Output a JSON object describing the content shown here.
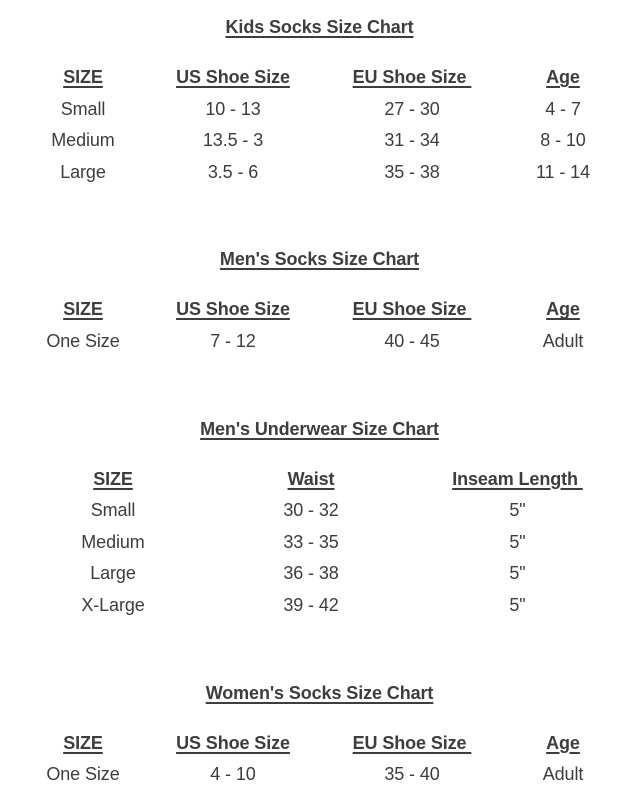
{
  "page": {
    "background": "#ffffff",
    "text_color": "#3d3d3d"
  },
  "charts": [
    {
      "title": "Kids Socks Size Chart",
      "layout": "four-col",
      "headers": [
        "SIZE",
        "US Shoe Size",
        "EU Shoe Size ",
        "Age"
      ],
      "rows": [
        [
          "Small",
          "10 - 13",
          "27 - 30",
          "4 - 7"
        ],
        [
          "Medium",
          "13.5 - 3",
          "31 - 34",
          "8 - 10"
        ],
        [
          "Large",
          "3.5 - 6",
          "35 - 38",
          "11 - 14"
        ]
      ]
    },
    {
      "title": "Men's Socks Size Chart",
      "layout": "four-col",
      "headers": [
        "SIZE",
        "US Shoe Size",
        "EU Shoe Size ",
        "Age"
      ],
      "rows": [
        [
          "One Size",
          "7 - 12",
          "40 - 45",
          "Adult"
        ]
      ]
    },
    {
      "title": "Men's Underwear Size Chart",
      "layout": "three-col",
      "headers": [
        "SIZE",
        "Waist",
        "Inseam Length "
      ],
      "rows": [
        [
          "Small",
          "30 - 32",
          "5\""
        ],
        [
          "Medium",
          "33 - 35",
          "5\""
        ],
        [
          "Large",
          "36 - 38",
          "5\""
        ],
        [
          "X-Large",
          "39 - 42",
          "5\""
        ]
      ]
    },
    {
      "title": "Women's Socks Size Chart",
      "layout": "four-col",
      "headers": [
        "SIZE",
        "US Shoe Size",
        "EU Shoe Size ",
        "Age"
      ],
      "rows": [
        [
          "One Size",
          "4 - 10",
          "35 - 40",
          "Adult"
        ]
      ]
    }
  ]
}
